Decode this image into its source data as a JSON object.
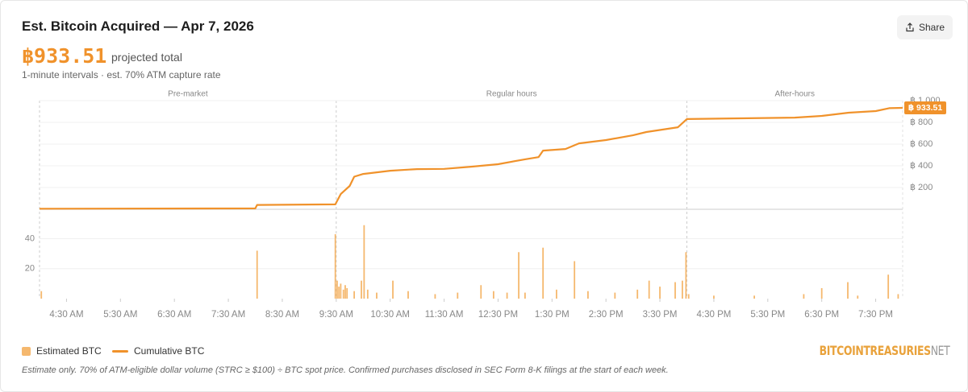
{
  "header": {
    "title": "Est. Bitcoin Acquired — Apr 7, 2026",
    "total": "฿933.51",
    "total_caption": "projected total",
    "subtitle": "1-minute intervals · est. 70% ATM capture rate",
    "share": "Share"
  },
  "chart_data": {
    "type": "bar-line",
    "xlim": [
      "4:00 AM",
      "8:00 PM"
    ],
    "xticks": [
      "4:30 AM",
      "5:30 AM",
      "6:30 AM",
      "7:30 AM",
      "8:30 AM",
      "9:30 AM",
      "10:30 AM",
      "11:30 AM",
      "12:30 PM",
      "1:30 PM",
      "2:30 PM",
      "3:30 PM",
      "4:30 PM",
      "5:30 PM",
      "6:30 PM",
      "7:30 PM"
    ],
    "ylim": [
      0,
      58
    ],
    "yticks": [
      20,
      40
    ],
    "y2lim": [
      0,
      1000
    ],
    "y2ticks": [
      {
        "value": 200,
        "label": "฿ 200"
      },
      {
        "value": 400,
        "label": "฿ 400"
      },
      {
        "value": 600,
        "label": "฿ 600"
      },
      {
        "value": 800,
        "label": "฿ 800"
      },
      {
        "value": 1000,
        "label": "฿ 1,000"
      }
    ],
    "grid": true,
    "sessions": [
      {
        "label": "Pre-market",
        "start": "4:00 AM",
        "end": "9:30 AM"
      },
      {
        "label": "Regular hours",
        "start": "9:30 AM",
        "end": "4:00 PM"
      },
      {
        "label": "After-hours",
        "start": "4:00 PM",
        "end": "8:00 PM"
      }
    ],
    "series": [
      {
        "name": "Estimated BTC",
        "type": "bar",
        "color": "#f5b86e",
        "x": [
          "4:02 AM",
          "8:02 AM",
          "9:29 AM",
          "9:31 AM",
          "9:33 AM",
          "9:35 AM",
          "9:38 AM",
          "9:40 AM",
          "9:42 AM",
          "9:50 AM",
          "9:58 AM",
          "10:01 AM",
          "10:05 AM",
          "10:15 AM",
          "10:33 AM",
          "10:50 AM",
          "11:20 AM",
          "11:45 AM",
          "12:11 PM",
          "12:25 PM",
          "12:40 PM",
          "12:53 PM",
          "1:00 PM",
          "1:20 PM",
          "1:35 PM",
          "1:55 PM",
          "2:10 PM",
          "2:40 PM",
          "3:05 PM",
          "3:18 PM",
          "3:30 PM",
          "3:47 PM",
          "3:55 PM",
          "3:59 PM",
          "4:02 PM",
          "4:30 PM",
          "5:15 PM",
          "6:10 PM",
          "6:30 PM",
          "6:59 PM",
          "7:10 PM",
          "7:44 PM",
          "7:55 PM"
        ],
        "values": [
          5,
          32,
          43,
          12,
          8,
          10,
          6,
          9,
          7,
          5,
          12,
          49,
          6,
          4,
          12,
          5,
          3,
          4,
          9,
          5,
          4,
          31,
          4,
          34,
          6,
          25,
          5,
          4,
          6,
          12,
          8,
          11,
          12,
          31,
          3,
          2,
          2,
          3,
          7,
          11,
          2,
          16,
          3
        ]
      },
      {
        "name": "Cumulative BTC",
        "type": "line",
        "axis": "y2",
        "color": "#f0922b",
        "x": [
          "4:00 AM",
          "8:00 AM",
          "8:02 AM",
          "9:29 AM",
          "9:35 AM",
          "9:45 AM",
          "9:50 AM",
          "10:00 AM",
          "10:30 AM",
          "11:00 AM",
          "11:30 AM",
          "12:00 PM",
          "12:30 PM",
          "1:00 PM",
          "1:15 PM",
          "1:20 PM",
          "1:45 PM",
          "2:00 PM",
          "2:30 PM",
          "3:00 PM",
          "3:15 PM",
          "3:50 PM",
          "3:55 PM",
          "4:00 PM",
          "5:00 PM",
          "6:00 PM",
          "6:30 PM",
          "7:00 PM",
          "7:30 PM",
          "7:45 PM",
          "8:00 PM"
        ],
        "values": [
          5,
          8,
          40,
          45,
          140,
          215,
          300,
          325,
          355,
          370,
          372,
          392,
          415,
          460,
          480,
          540,
          555,
          607,
          637,
          681,
          711,
          755,
          792,
          830,
          837,
          844,
          859,
          889,
          904,
          930,
          933.51
        ],
        "value_labels": [
          null,
          null,
          null,
          null,
          null,
          null,
          null,
          null,
          null,
          null,
          null,
          null,
          null,
          null,
          null,
          null,
          null,
          null,
          null,
          null,
          null,
          null,
          null,
          null,
          null,
          null,
          null,
          null,
          null,
          null,
          "฿ 933.51"
        ]
      }
    ]
  },
  "legend_note": "Estimate only. 70% of ATM-eligible dollar volume (STRC ≥ $100) ÷ BTC spot price. Confirmed purchases disclosed in SEC Form 8-K filings at the start of each week.",
  "logo": {
    "main": "BITCOINTREASURIES",
    "suffix": "NET"
  }
}
